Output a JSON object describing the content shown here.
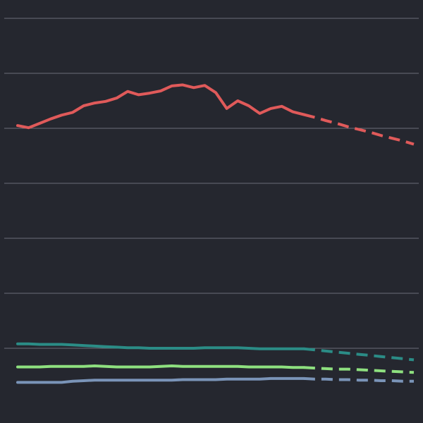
{
  "chart_data": {
    "type": "line",
    "title": "",
    "xlabel": "",
    "ylabel": "",
    "ylim": [
      0,
      7
    ],
    "grid": true,
    "legend": "none",
    "x": [
      1,
      2,
      3,
      4,
      5,
      6,
      7,
      8,
      9,
      10,
      11,
      12,
      13,
      14,
      15,
      16,
      17,
      18,
      19,
      20,
      21,
      22,
      23,
      24,
      25,
      26,
      27,
      28,
      29,
      30,
      31,
      32,
      33,
      34,
      35,
      36,
      37
    ],
    "actual_until": 27,
    "colors": {
      "background": "#25272f",
      "grid": "#6b6e78",
      "red": "#e05a5a",
      "teal": "#2b8c86",
      "green": "#8ee07f",
      "blue": "#7a94b8"
    },
    "series": [
      {
        "color": "red",
        "values": [
          5.05,
          5.01,
          5.09,
          5.17,
          5.24,
          5.29,
          5.41,
          5.46,
          5.49,
          5.55,
          5.67,
          5.61,
          5.64,
          5.68,
          5.77,
          5.79,
          5.74,
          5.78,
          5.65,
          5.36,
          5.5,
          5.41,
          5.27,
          5.36,
          5.4,
          5.3,
          5.25,
          5.2,
          5.14,
          5.09,
          5.03,
          4.98,
          4.93,
          4.87,
          4.82,
          4.77,
          4.71
        ]
      },
      {
        "color": "teal",
        "values": [
          1.08,
          1.08,
          1.07,
          1.07,
          1.07,
          1.06,
          1.05,
          1.04,
          1.03,
          1.02,
          1.01,
          1.01,
          1.0,
          1.0,
          1.0,
          1.0,
          1.0,
          1.01,
          1.01,
          1.01,
          1.01,
          1.0,
          0.99,
          0.99,
          0.99,
          0.99,
          0.99,
          0.97,
          0.95,
          0.93,
          0.91,
          0.89,
          0.87,
          0.85,
          0.83,
          0.81,
          0.79
        ]
      },
      {
        "color": "green",
        "values": [
          0.66,
          0.66,
          0.66,
          0.67,
          0.67,
          0.67,
          0.67,
          0.68,
          0.67,
          0.66,
          0.66,
          0.66,
          0.66,
          0.67,
          0.68,
          0.67,
          0.67,
          0.67,
          0.67,
          0.67,
          0.67,
          0.66,
          0.66,
          0.66,
          0.66,
          0.65,
          0.65,
          0.64,
          0.63,
          0.62,
          0.62,
          0.61,
          0.6,
          0.59,
          0.58,
          0.57,
          0.56
        ]
      },
      {
        "color": "blue",
        "values": [
          0.38,
          0.38,
          0.38,
          0.38,
          0.38,
          0.4,
          0.41,
          0.42,
          0.42,
          0.42,
          0.42,
          0.42,
          0.42,
          0.42,
          0.42,
          0.43,
          0.43,
          0.43,
          0.43,
          0.44,
          0.44,
          0.44,
          0.44,
          0.45,
          0.45,
          0.45,
          0.45,
          0.44,
          0.44,
          0.43,
          0.43,
          0.42,
          0.42,
          0.41,
          0.41,
          0.4,
          0.4
        ]
      }
    ]
  }
}
